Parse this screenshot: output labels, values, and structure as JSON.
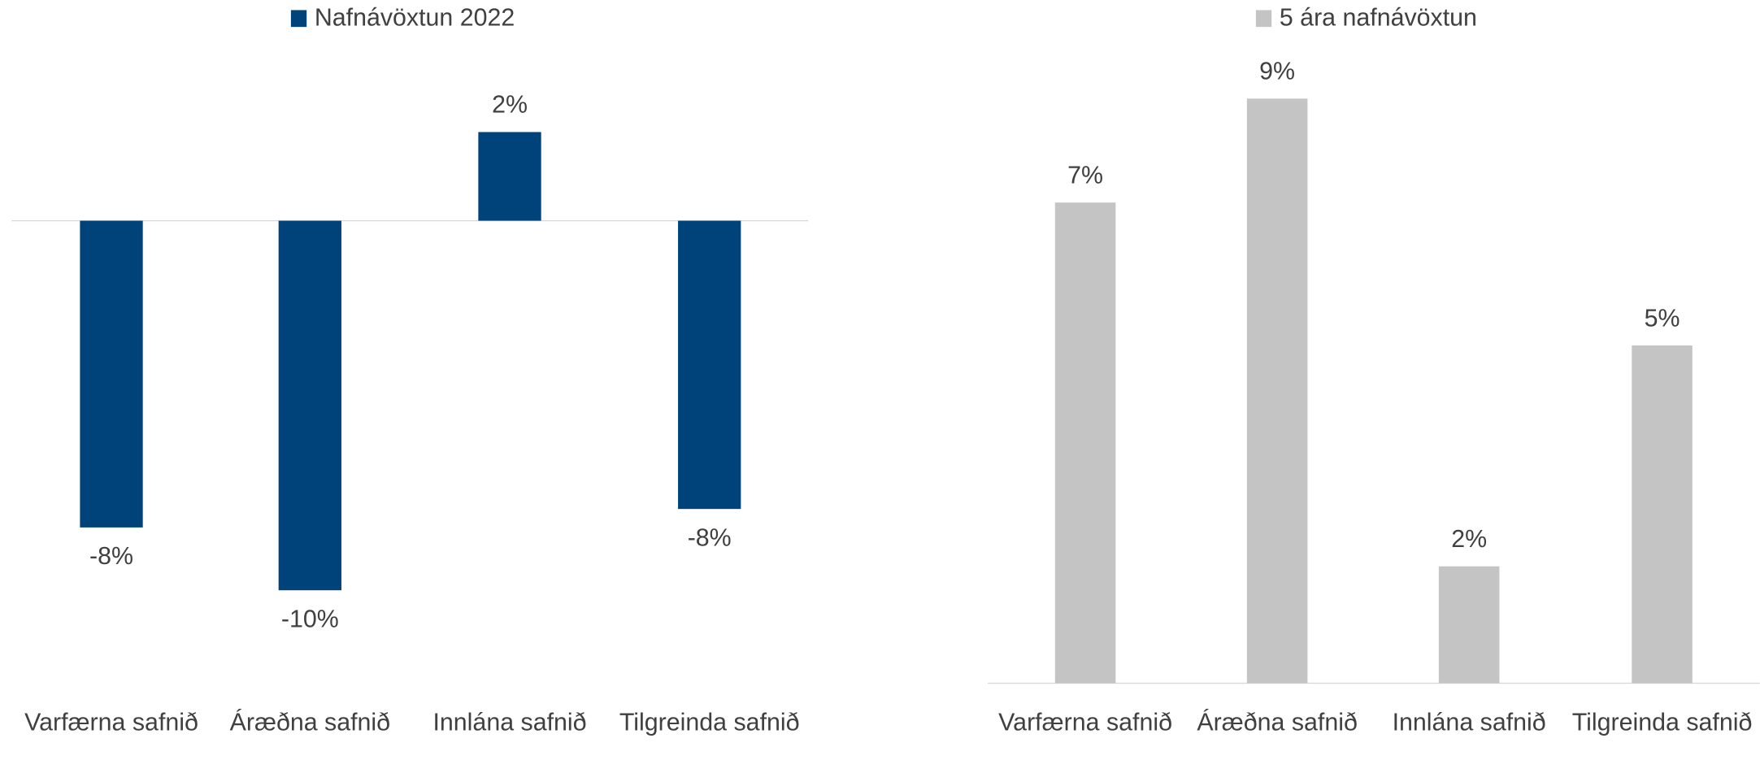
{
  "chart_data": [
    {
      "type": "bar",
      "categories": [
        "Varfærna safnið",
        "Áræðna safnið",
        "Innlána safnið",
        "Tilgreinda safnið"
      ],
      "series": [
        {
          "name": "Nafnávöxtun 2022",
          "color": "#00427a",
          "values": [
            -8.3,
            -10,
            2.4,
            -7.8
          ],
          "value_labels": [
            "-8%",
            "-10%",
            "2%",
            "-8%"
          ]
        }
      ],
      "ylim": [
        -12,
        4
      ]
    },
    {
      "type": "bar",
      "categories": [
        "Varfærna safnið",
        "Áræðna safnið",
        "Innlána safnið",
        "Tilgreinda safnið"
      ],
      "series": [
        {
          "name": "5 ára nafnávöxtun",
          "color": "#c4c4c4",
          "values": [
            7.4,
            9,
            1.8,
            5.2
          ],
          "value_labels": [
            "7%",
            "9%",
            "2%",
            "5%"
          ]
        }
      ],
      "ylim": [
        0,
        10
      ]
    }
  ]
}
